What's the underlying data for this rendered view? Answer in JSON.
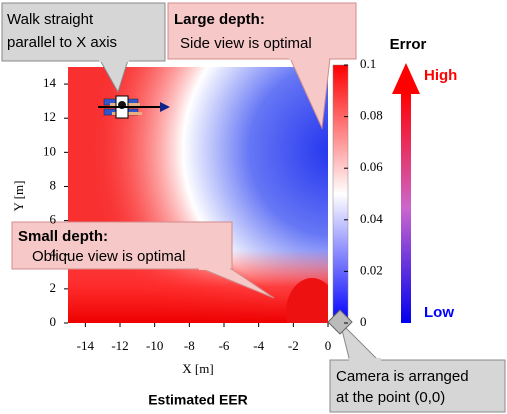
{
  "chart_data": {
    "type": "heatmap",
    "title": "Estimated EER",
    "xlabel": "X [m]",
    "ylabel": "Y [m]",
    "xlim": [
      -15,
      0
    ],
    "ylim": [
      0,
      15
    ],
    "xticks": [
      -14,
      -12,
      -10,
      -8,
      -6,
      -4,
      -2,
      0
    ],
    "yticks": [
      0,
      2,
      4,
      6,
      8,
      10,
      12,
      14
    ],
    "colorbar": {
      "label": "Error",
      "lim": [
        0,
        0.1
      ],
      "ticks": [
        0,
        0.02,
        0.04,
        0.06,
        0.08,
        0.1
      ],
      "high_label": "High",
      "low_label": "Low",
      "high_color": "#ff0000",
      "low_color": "#0000ff"
    },
    "annotations": [
      {
        "lines": [
          "Walk straight",
          "parallel to X axis"
        ]
      },
      {
        "heading": "Large depth:",
        "lines": [
          "Side view is optimal"
        ]
      },
      {
        "heading": "Small depth:",
        "lines": [
          "Oblique view is optimal"
        ]
      },
      {
        "lines": [
          "Camera is arranged",
          "at the point  (0,0)"
        ]
      }
    ]
  }
}
